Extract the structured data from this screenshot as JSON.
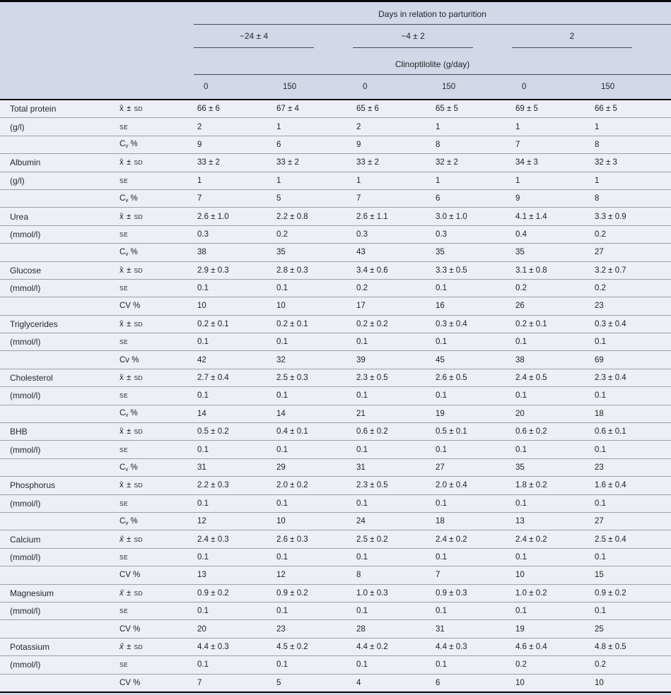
{
  "table": {
    "header": {
      "days_label": "Days in relation to parturition",
      "day_groups": [
        "−24 ± 4",
        "−4 ± 2",
        "2"
      ],
      "treatment_label": "Clinoptilolite (g/day)",
      "doses": [
        "0",
        "150",
        "0",
        "150",
        "0",
        "150"
      ]
    },
    "stat_labels": {
      "mean_x": "x̄",
      "plus_minus": "±",
      "sd": "sd",
      "se": "se",
      "percent": "%"
    },
    "parameters": [
      {
        "name": "Total protein",
        "unit": "(g/l)",
        "x_italic": false,
        "cv_main": "C",
        "cv_sub": "v",
        "mean_sd": [
          "66 ± 6",
          "67 ± 4",
          "65 ± 6",
          "65 ± 5",
          "69 ± 5",
          "66 ± 5"
        ],
        "se": [
          "2",
          "1",
          "2",
          "1",
          "1",
          "1"
        ],
        "cv": [
          "9",
          "6",
          "9",
          "8",
          "7",
          "8"
        ]
      },
      {
        "name": "Albumin",
        "unit": "(g/l)",
        "x_italic": false,
        "cv_main": "C",
        "cv_sub": "v",
        "mean_sd": [
          "33 ± 2",
          "33 ± 2",
          "33 ± 2",
          "32 ± 2",
          "34 ± 3",
          "32 ± 3"
        ],
        "se": [
          "1",
          "1",
          "1",
          "1",
          "1",
          "1"
        ],
        "cv": [
          "7",
          "5",
          "7",
          "6",
          "9",
          "8"
        ]
      },
      {
        "name": "Urea",
        "unit": "(mmol/l)",
        "x_italic": false,
        "cv_main": "C",
        "cv_sub": "v",
        "mean_sd": [
          "2.6 ± 1.0",
          "2.2 ± 0.8",
          "2.6 ± 1.1",
          "3.0 ± 1.0",
          "4.1 ± 1.4",
          "3.3 ± 0.9"
        ],
        "se": [
          "0.3",
          "0.2",
          "0.3",
          "0.3",
          "0.4",
          "0.2"
        ],
        "cv": [
          "38",
          "35",
          "43",
          "35",
          "35",
          "27"
        ]
      },
      {
        "name": "Glucose",
        "unit": "(mmol/l)",
        "x_italic": false,
        "cv_main": "CV",
        "cv_sub": "",
        "mean_sd": [
          "2.9 ± 0.3",
          "2.8 ± 0.3",
          "3.4 ± 0.6",
          "3.3 ± 0.5",
          "3.1 ± 0.8",
          "3.2 ± 0.7"
        ],
        "se": [
          "0.1",
          "0.1",
          "0.2",
          "0.1",
          "0.2",
          "0.2"
        ],
        "cv": [
          "10",
          "10",
          "17",
          "16",
          "26",
          "23"
        ]
      },
      {
        "name": "Triglycerides",
        "unit": "(mmol/l)",
        "x_italic": false,
        "cv_main": "Cv",
        "cv_sub": "",
        "mean_sd": [
          "0.2 ± 0.1",
          "0.2 ± 0.1",
          "0.2 ± 0.2",
          "0.3 ± 0.4",
          "0.2 ± 0.1",
          "0.3 ± 0.4"
        ],
        "se": [
          "0.1",
          "0.1",
          "0.1",
          "0.1",
          "0.1",
          "0.1"
        ],
        "cv": [
          "42",
          "32",
          "39",
          "45",
          "38",
          "69"
        ]
      },
      {
        "name": "Cholesterol",
        "unit": "(mmol/l)",
        "x_italic": false,
        "cv_main": "C",
        "cv_sub": "v",
        "mean_sd": [
          "2.7 ± 0.4",
          "2.5 ± 0.3",
          "2.3 ± 0.5",
          "2.6 ± 0.5",
          "2.4 ± 0.5",
          "2.3 ± 0.4"
        ],
        "se": [
          "0.1",
          "0.1",
          "0.1",
          "0.1",
          "0.1",
          "0.1"
        ],
        "cv": [
          "14",
          "14",
          "21",
          "19",
          "20",
          "18"
        ]
      },
      {
        "name": "BHB",
        "unit": "(mmol/l)",
        "x_italic": false,
        "cv_main": "C",
        "cv_sub": "v",
        "mean_sd": [
          "0.5 ± 0.2",
          "0.4 ± 0.1",
          "0.6 ± 0.2",
          "0.5 ± 0.1",
          "0.6 ± 0.2",
          "0.6 ± 0.1"
        ],
        "se": [
          "0.1",
          "0.1",
          "0.1",
          "0.1",
          "0.1",
          "0.1"
        ],
        "cv": [
          "31",
          "29",
          "31",
          "27",
          "35",
          "23"
        ]
      },
      {
        "name": "Phosphorus",
        "unit": "(mmol/l)",
        "x_italic": false,
        "cv_main": "C",
        "cv_sub": "v",
        "mean_sd": [
          "2.2 ± 0.3",
          "2.0 ± 0.2",
          "2.3 ± 0.5",
          "2.0 ± 0.4",
          "1.8 ± 0.2",
          "1.6 ± 0.4"
        ],
        "se": [
          "0.1",
          "0.1",
          "0.1",
          "0.1",
          "0.1",
          "0.1"
        ],
        "cv": [
          "12",
          "10",
          "24",
          "18",
          "13",
          "27"
        ]
      },
      {
        "name": "Calcium",
        "unit": "(mmol/l)",
        "x_italic": true,
        "cv_main": "CV",
        "cv_sub": "",
        "mean_sd": [
          "2.4 ± 0.3",
          "2.6 ± 0.3",
          "2.5 ± 0.2",
          "2.4 ± 0.2",
          "2.4 ± 0.2",
          "2.5 ± 0.4"
        ],
        "se": [
          "0.1",
          "0.1",
          "0.1",
          "0.1",
          "0.1",
          "0.1"
        ],
        "cv": [
          "13",
          "12",
          "8",
          "7",
          "10",
          "15"
        ]
      },
      {
        "name": "Magnesium",
        "unit": "(mmol/l)",
        "x_italic": true,
        "cv_main": "CV",
        "cv_sub": "",
        "mean_sd": [
          "0.9 ± 0.2",
          "0.9 ± 0.2",
          "1.0 ± 0.3",
          "0.9 ± 0.3",
          "1.0 ± 0.2",
          "0.9 ± 0.2"
        ],
        "se": [
          "0.1",
          "0.1",
          "0.1",
          "0.1",
          "0.1",
          "0.1"
        ],
        "cv": [
          "20",
          "23",
          "28",
          "31",
          "19",
          "25"
        ]
      },
      {
        "name": "Potassium",
        "unit": "(mmol/l)",
        "x_italic": true,
        "cv_main": "CV",
        "cv_sub": "",
        "mean_sd": [
          "4.4 ± 0.3",
          "4.5 ± 0.2",
          "4.4 ± 0.2",
          "4.4 ± 0.3",
          "4.6 ± 0.4",
          "4.8 ± 0.5"
        ],
        "se": [
          "0.1",
          "0.1",
          "0.1",
          "0.1",
          "0.2",
          "0.2"
        ],
        "cv": [
          "7",
          "5",
          "4",
          "6",
          "10",
          "10"
        ]
      }
    ]
  }
}
